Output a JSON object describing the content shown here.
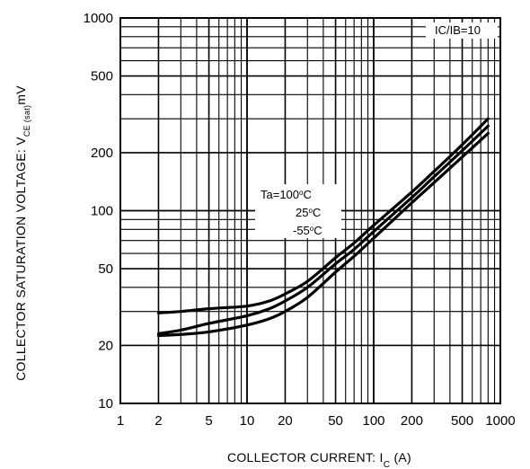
{
  "chart_data": {
    "type": "line",
    "title": "",
    "xlabel": "COLLECTOR CURRENT: I",
    "xlabel_sub": "C",
    "xlabel_unit": " (A)",
    "ylabel": "COLLECTOR SATURATION VOLTAGE: V",
    "ylabel_sub": "CE (sat)",
    "ylabel_unit": "mV",
    "x_scale": "log",
    "y_scale": "log",
    "xlim": [
      1,
      1000
    ],
    "ylim": [
      10,
      1000
    ],
    "grid": true,
    "x_ticks": [
      1,
      2,
      5,
      10,
      20,
      50,
      100,
      200,
      500,
      1000
    ],
    "x_tick_labels": [
      "1",
      "2",
      "5",
      "10",
      "20",
      "50",
      "100",
      "200",
      "500",
      "1000"
    ],
    "y_ticks": [
      10,
      20,
      50,
      100,
      200,
      500,
      1000
    ],
    "y_tick_labels": [
      "10",
      "20",
      "50",
      "100",
      "200",
      "500",
      "1000"
    ],
    "condition_label": "IC/IB=10",
    "annotations": {
      "line1": "Ta=100",
      "line1_unit": "C",
      "line2": "25",
      "line2_unit": "C",
      "line3": "-55",
      "line3_unit": "C",
      "degree": "o"
    },
    "series": [
      {
        "x": [
          2,
          3,
          5,
          10,
          15,
          20,
          30,
          50,
          70,
          100,
          200,
          300,
          500,
          800
        ],
        "y": [
          29.5,
          30,
          31,
          32,
          34,
          37,
          43,
          57,
          68,
          84,
          125,
          160,
          220,
          300
        ]
      },
      {
        "x": [
          2,
          3,
          5,
          10,
          15,
          20,
          30,
          50,
          70,
          100,
          200,
          300,
          500,
          800
        ],
        "y": [
          23,
          24,
          26,
          28.5,
          31,
          34,
          40,
          53,
          63,
          78,
          117,
          150,
          205,
          275
        ]
      },
      {
        "x": [
          2,
          3,
          5,
          10,
          15,
          20,
          30,
          50,
          70,
          100,
          200,
          300,
          500,
          800
        ],
        "y": [
          22.5,
          22.8,
          23.5,
          25.5,
          27.5,
          30,
          35.5,
          48,
          58,
          72,
          110,
          140,
          190,
          252
        ]
      }
    ]
  }
}
